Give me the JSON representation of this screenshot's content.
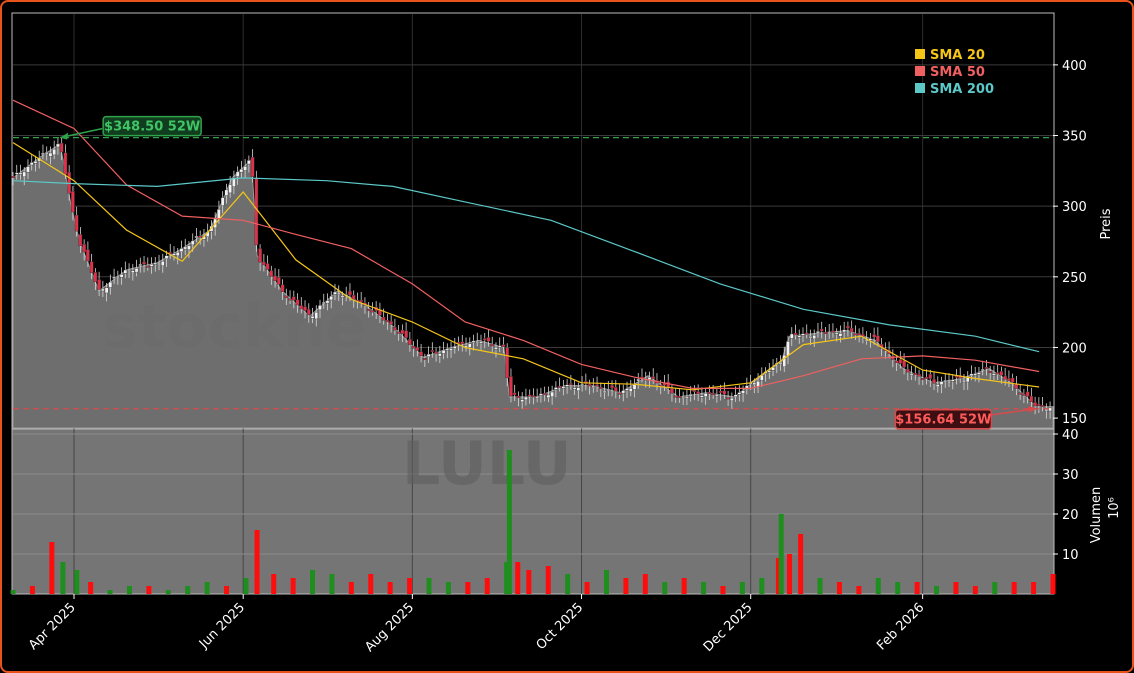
{
  "chart_data": {
    "type": "candlestick_with_volume",
    "ticker_watermark": "LULU",
    "brand_watermark": "stockne",
    "price_axis": {
      "label": "Preis",
      "ticks": [
        150,
        200,
        250,
        300,
        350,
        400
      ],
      "range": [
        143,
        436
      ]
    },
    "volume_axis": {
      "label": "Volumen",
      "unit_label": "10⁶",
      "ticks": [
        10,
        20,
        30,
        40
      ],
      "range": [
        0,
        41
      ]
    },
    "x_tick_labels": [
      "Apr 2025",
      "Jun 2025",
      "Aug 2025",
      "Oct 2025",
      "Dec 2025",
      "Feb 2026"
    ],
    "x_tick_dates": [
      "2025-04-01",
      "2025-06-01",
      "2025-08-01",
      "2025-10-01",
      "2025-12-01",
      "2026-02-01"
    ],
    "x_range": [
      "2025-03-10",
      "2026-03-20"
    ],
    "legend": [
      {
        "label": "SMA 20",
        "color": "#f5c518"
      },
      {
        "label": "SMA 50",
        "color": "#f06060"
      },
      {
        "label": "SMA 200",
        "color": "#5cc8c8"
      }
    ],
    "annotations": {
      "high_label": "$348.50 52W",
      "high_value": 348.5,
      "high_date": "2025-03-27",
      "low_label": "$156.64 52W",
      "low_value": 156.64,
      "low_date": "2026-03-14"
    },
    "price_series": {
      "dates": [
        "2025-03-10",
        "2025-03-20",
        "2025-03-27",
        "2025-03-31",
        "2025-04-03",
        "2025-04-10",
        "2025-04-20",
        "2025-05-01",
        "2025-05-10",
        "2025-05-20",
        "2025-05-28",
        "2025-06-04",
        "2025-06-06",
        "2025-06-15",
        "2025-06-25",
        "2025-07-05",
        "2025-07-15",
        "2025-07-25",
        "2025-08-05",
        "2025-08-15",
        "2025-08-25",
        "2025-09-03",
        "2025-09-05",
        "2025-09-15",
        "2025-09-25",
        "2025-10-05",
        "2025-10-15",
        "2025-10-25",
        "2025-11-05",
        "2025-11-15",
        "2025-11-25",
        "2025-12-05",
        "2025-12-12",
        "2025-12-15",
        "2025-12-25",
        "2026-01-05",
        "2026-01-15",
        "2026-01-25",
        "2026-02-05",
        "2026-02-15",
        "2026-02-25",
        "2026-03-05",
        "2026-03-14",
        "2026-03-20"
      ],
      "close": [
        320,
        335,
        344,
        300,
        275,
        240,
        255,
        260,
        270,
        283,
        320,
        333,
        265,
        240,
        222,
        240,
        230,
        215,
        193,
        200,
        205,
        200,
        165,
        165,
        173,
        173,
        168,
        180,
        165,
        168,
        165,
        180,
        190,
        208,
        210,
        212,
        205,
        185,
        175,
        178,
        185,
        175,
        158,
        158
      ]
    },
    "sma20": {
      "dates": [
        "2025-03-10",
        "2025-04-01",
        "2025-04-20",
        "2025-05-10",
        "2025-06-01",
        "2025-06-20",
        "2025-07-10",
        "2025-08-01",
        "2025-08-20",
        "2025-09-10",
        "2025-10-01",
        "2025-10-20",
        "2025-11-10",
        "2025-12-01",
        "2025-12-20",
        "2026-01-10",
        "2026-02-01",
        "2026-02-20",
        "2026-03-15"
      ],
      "values": [
        345,
        318,
        283,
        261,
        310,
        262,
        234,
        218,
        200,
        192,
        175,
        174,
        170,
        175,
        202,
        208,
        184,
        178,
        172
      ]
    },
    "sma50": {
      "dates": [
        "2025-03-10",
        "2025-04-01",
        "2025-04-20",
        "2025-05-10",
        "2025-06-01",
        "2025-06-20",
        "2025-07-10",
        "2025-08-01",
        "2025-08-20",
        "2025-09-10",
        "2025-10-01",
        "2025-10-20",
        "2025-11-10",
        "2025-12-01",
        "2025-12-20",
        "2026-01-10",
        "2026-02-01",
        "2026-02-20",
        "2026-03-15"
      ],
      "values": [
        375,
        355,
        315,
        293,
        290,
        280,
        270,
        245,
        218,
        205,
        188,
        179,
        171,
        171,
        180,
        192,
        194,
        191,
        183
      ]
    },
    "sma200": {
      "dates": [
        "2025-03-10",
        "2025-04-01",
        "2025-05-01",
        "2025-06-01",
        "2025-07-01",
        "2025-07-25",
        "2025-08-20",
        "2025-09-20",
        "2025-10-20",
        "2025-11-20",
        "2025-12-20",
        "2026-01-20",
        "2026-02-20",
        "2026-03-15"
      ],
      "values": [
        318,
        316,
        314,
        320,
        318,
        314,
        303,
        290,
        268,
        245,
        227,
        216,
        208,
        197
      ]
    },
    "volume_series": {
      "dates": [
        "2025-03-10",
        "2025-03-17",
        "2025-03-24",
        "2025-03-28",
        "2025-04-02",
        "2025-04-07",
        "2025-04-14",
        "2025-04-21",
        "2025-04-28",
        "2025-05-05",
        "2025-05-12",
        "2025-05-19",
        "2025-05-26",
        "2025-06-02",
        "2025-06-06",
        "2025-06-12",
        "2025-06-19",
        "2025-06-26",
        "2025-07-03",
        "2025-07-10",
        "2025-07-17",
        "2025-07-24",
        "2025-07-31",
        "2025-08-07",
        "2025-08-14",
        "2025-08-21",
        "2025-08-28",
        "2025-09-04",
        "2025-09-05",
        "2025-09-08",
        "2025-09-12",
        "2025-09-19",
        "2025-09-26",
        "2025-10-03",
        "2025-10-10",
        "2025-10-17",
        "2025-10-24",
        "2025-10-31",
        "2025-11-07",
        "2025-11-14",
        "2025-11-21",
        "2025-11-28",
        "2025-12-05",
        "2025-12-11",
        "2025-12-12",
        "2025-12-15",
        "2025-12-19",
        "2025-12-26",
        "2026-01-02",
        "2026-01-09",
        "2026-01-16",
        "2026-01-23",
        "2026-01-30",
        "2026-02-06",
        "2026-02-13",
        "2026-02-20",
        "2026-02-27",
        "2026-03-06",
        "2026-03-13",
        "2026-03-20"
      ],
      "values": [
        1,
        2,
        13,
        8,
        6,
        3,
        1,
        2,
        2,
        1,
        2,
        3,
        2,
        4,
        16,
        5,
        4,
        6,
        5,
        3,
        5,
        3,
        4,
        4,
        3,
        3,
        4,
        8,
        36,
        8,
        6,
        7,
        5,
        3,
        6,
        4,
        5,
        3,
        4,
        3,
        2,
        3,
        4,
        9,
        20,
        10,
        15,
        4,
        3,
        2,
        4,
        3,
        3,
        2,
        3,
        2,
        3,
        3,
        3,
        5
      ],
      "up": [
        true,
        false,
        false,
        true,
        true,
        false,
        true,
        true,
        false,
        true,
        true,
        true,
        false,
        true,
        false,
        false,
        false,
        true,
        true,
        false,
        false,
        false,
        false,
        true,
        true,
        false,
        false,
        true,
        true,
        false,
        false,
        false,
        true,
        false,
        true,
        false,
        false,
        true,
        false,
        true,
        false,
        true,
        true,
        false,
        true,
        false,
        false,
        true,
        false,
        false,
        true,
        true,
        false,
        true,
        false,
        false,
        true,
        false,
        false,
        false
      ]
    }
  }
}
